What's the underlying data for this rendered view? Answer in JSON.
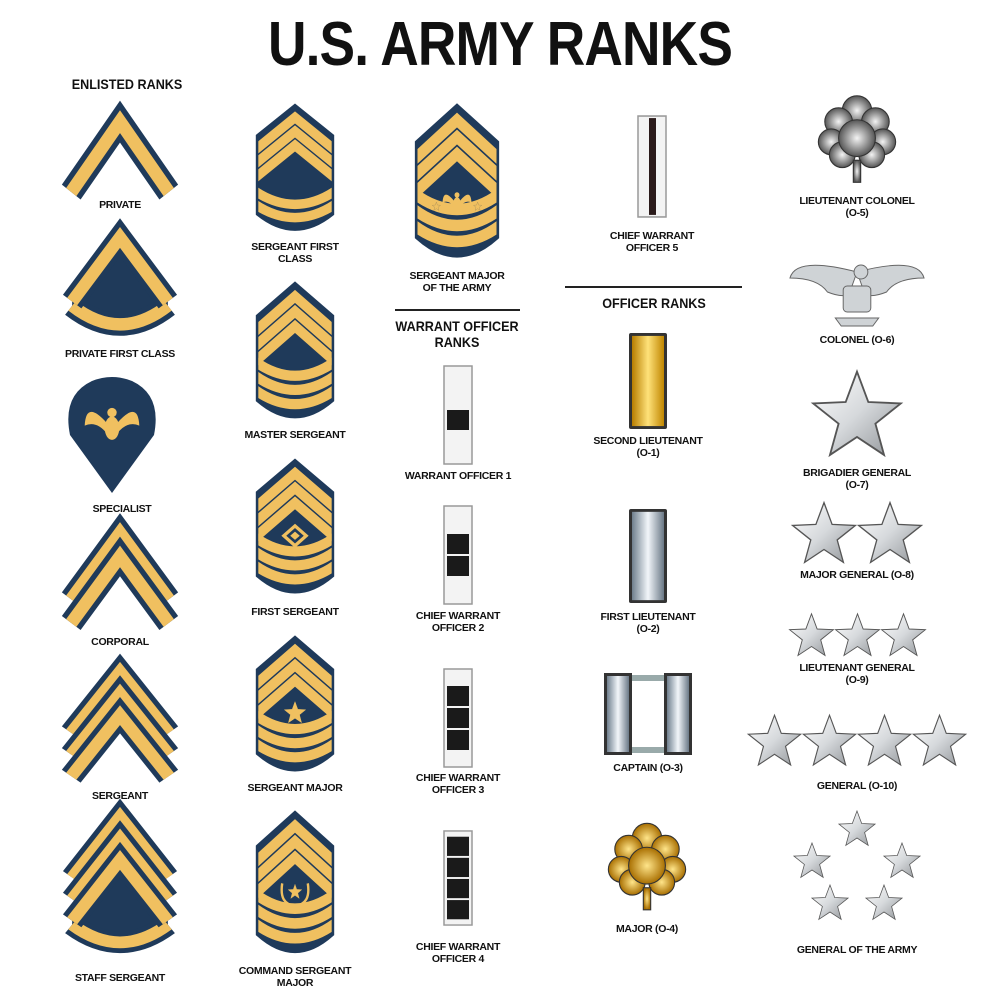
{
  "title": "U.S. ARMY RANKS",
  "sections": {
    "enlisted": "ENLISTED RANKS",
    "warrant": [
      "WARRANT OFFICER",
      "RANKS"
    ],
    "officer": "OFFICER RANKS"
  },
  "colors": {
    "navy": "#1f3a5a",
    "gold": "#f0c060",
    "silver": "#d8dde2",
    "black": "#1a1a1a"
  },
  "ranks": [
    {
      "id": "private",
      "label": [
        "PRIVATE"
      ],
      "insignia": {
        "icon": "chevron-icon",
        "chevrons": 1,
        "rockers": 0
      }
    },
    {
      "id": "private-first-class",
      "label": [
        "PRIVATE FIRST CLASS"
      ],
      "insignia": {
        "icon": "chevron-rocker-icon",
        "chevrons": 1,
        "rockers": 1
      }
    },
    {
      "id": "specialist",
      "label": [
        "SPECIALIST"
      ],
      "insignia": {
        "icon": "specialist-eagle-icon"
      }
    },
    {
      "id": "corporal",
      "label": [
        "CORPORAL"
      ],
      "insignia": {
        "icon": "chevron-icon",
        "chevrons": 2,
        "rockers": 0
      }
    },
    {
      "id": "sergeant",
      "label": [
        "SERGEANT"
      ],
      "insignia": {
        "icon": "chevron-icon",
        "chevrons": 3,
        "rockers": 0
      }
    },
    {
      "id": "staff-sergeant",
      "label": [
        "STAFF SERGEANT"
      ],
      "insignia": {
        "icon": "chevron-rocker-icon",
        "chevrons": 3,
        "rockers": 1
      }
    },
    {
      "id": "sergeant-first-class",
      "label": [
        "SERGEANT FIRST",
        "CLASS"
      ],
      "insignia": {
        "icon": "senior-chevron-icon",
        "chevrons": 3,
        "rockers": 2,
        "device": "none"
      }
    },
    {
      "id": "master-sergeant",
      "label": [
        "MASTER SERGEANT"
      ],
      "insignia": {
        "icon": "senior-chevron-icon",
        "chevrons": 3,
        "rockers": 3,
        "device": "none"
      }
    },
    {
      "id": "first-sergeant",
      "label": [
        "FIRST SERGEANT"
      ],
      "insignia": {
        "icon": "senior-chevron-icon",
        "chevrons": 3,
        "rockers": 3,
        "device": "diamond"
      }
    },
    {
      "id": "sergeant-major",
      "label": [
        "SERGEANT MAJOR"
      ],
      "insignia": {
        "icon": "senior-chevron-icon",
        "chevrons": 3,
        "rockers": 3,
        "device": "star"
      }
    },
    {
      "id": "command-sergeant-major",
      "label": [
        "COMMAND SERGEANT",
        "MAJOR"
      ],
      "insignia": {
        "icon": "senior-chevron-icon",
        "chevrons": 3,
        "rockers": 3,
        "device": "wreath-star"
      }
    },
    {
      "id": "sergeant-major-of-the-army",
      "label": [
        "SERGEANT MAJOR",
        "OF THE ARMY"
      ],
      "insignia": {
        "icon": "senior-chevron-icon",
        "chevrons": 3,
        "rockers": 3,
        "device": "eagle-stars"
      }
    },
    {
      "id": "warrant-officer-1",
      "label": [
        "WARRANT OFFICER 1"
      ],
      "insignia": {
        "icon": "warrant-bar-icon",
        "squares": 1
      }
    },
    {
      "id": "chief-warrant-officer-2",
      "label": [
        "CHIEF WARRANT",
        "OFFICER 2"
      ],
      "insignia": {
        "icon": "warrant-bar-icon",
        "squares": 2
      }
    },
    {
      "id": "chief-warrant-officer-3",
      "label": [
        "CHIEF WARRANT",
        "OFFICER 3"
      ],
      "insignia": {
        "icon": "warrant-bar-icon",
        "squares": 3
      }
    },
    {
      "id": "chief-warrant-officer-4",
      "label": [
        "CHIEF WARRANT",
        "OFFICER 4"
      ],
      "insignia": {
        "icon": "warrant-bar-icon",
        "squares": 4
      }
    },
    {
      "id": "chief-warrant-officer-5",
      "label": [
        "CHIEF WARRANT",
        "OFFICER 5"
      ],
      "insignia": {
        "icon": "warrant-stripe-icon"
      }
    },
    {
      "id": "second-lieutenant",
      "label": [
        "SECOND LIEUTENANT",
        "(O-1)"
      ],
      "insignia": {
        "icon": "gold-bar-icon"
      }
    },
    {
      "id": "first-lieutenant",
      "label": [
        "FIRST LIEUTENANT",
        "(O-2)"
      ],
      "insignia": {
        "icon": "silver-bar-icon"
      }
    },
    {
      "id": "captain",
      "label": [
        "CAPTAIN (O-3)"
      ],
      "insignia": {
        "icon": "double-silver-bar-icon"
      }
    },
    {
      "id": "major",
      "label": [
        "MAJOR (O-4)"
      ],
      "insignia": {
        "icon": "gold-oak-leaf-icon"
      }
    },
    {
      "id": "lieutenant-colonel",
      "label": [
        "LIEUTENANT COLONEL",
        "(O-5)"
      ],
      "insignia": {
        "icon": "silver-oak-leaf-icon"
      }
    },
    {
      "id": "colonel",
      "label": [
        "COLONEL (O-6)"
      ],
      "insignia": {
        "icon": "silver-eagle-icon"
      }
    },
    {
      "id": "brigadier-general",
      "label": [
        "BRIGADIER GENERAL",
        "(O-7)"
      ],
      "insignia": {
        "icon": "star-icon",
        "stars": 1
      }
    },
    {
      "id": "major-general",
      "label": [
        "MAJOR GENERAL (O-8)"
      ],
      "insignia": {
        "icon": "star-icon",
        "stars": 2
      }
    },
    {
      "id": "lieutenant-general",
      "label": [
        "LIEUTENANT GENERAL",
        "(O-9)"
      ],
      "insignia": {
        "icon": "star-icon",
        "stars": 3
      }
    },
    {
      "id": "general",
      "label": [
        "GENERAL (O-10)"
      ],
      "insignia": {
        "icon": "star-icon",
        "stars": 4
      }
    },
    {
      "id": "general-of-the-army",
      "label": [
        "GENERAL OF THE ARMY"
      ],
      "insignia": {
        "icon": "five-star-pentagon-icon",
        "stars": 5
      }
    }
  ]
}
